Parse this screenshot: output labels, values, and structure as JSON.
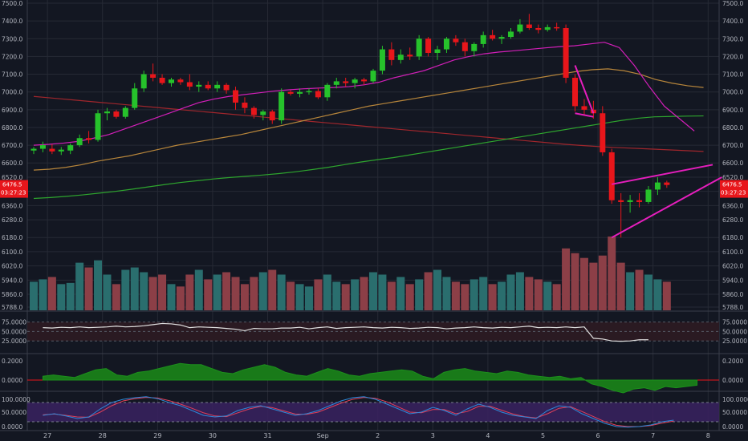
{
  "colors": {
    "background": "#131722",
    "grid": "#262a35",
    "axis_text": "#b2b5be",
    "up": "#26c22b",
    "down": "#e8161b",
    "vol_up": "#2a6e6e",
    "vol_down": "#8c3f47",
    "ma_fast": "#d21fb8",
    "ma_mid": "#b8863b",
    "ma_slow": "#2ea52e",
    "ma_long": "#a0262c",
    "triangle": "#e61ebd",
    "rsi_band": "#2a1a22",
    "rsi_line": "#e0e0e0",
    "macd_fill": "#197a19",
    "stoch_band": "#3a2260",
    "stoch_k": "#2d88d8",
    "stoch_d": "#e0405a",
    "price_label": "#e8161b"
  },
  "price_badge": {
    "price": "6476.5",
    "countdown": "03:27:23"
  },
  "chart_data": {
    "type": "candlestick",
    "x_labels": [
      {
        "label": "27",
        "i": 3
      },
      {
        "label": "28",
        "i": 15
      },
      {
        "label": "29",
        "i": 27
      },
      {
        "label": "30",
        "i": 39
      },
      {
        "label": "31",
        "i": 51
      },
      {
        "label": "Sep",
        "i": 63
      },
      {
        "label": "2",
        "i": 75
      },
      {
        "label": "3",
        "i": 87
      },
      {
        "label": "4",
        "i": 99
      },
      {
        "label": "5",
        "i": 111
      },
      {
        "label": "6",
        "i": 123
      },
      {
        "label": "7",
        "i": 135
      },
      {
        "label": "8",
        "i": 147
      }
    ],
    "price_ticks": [
      "7500.0",
      "7400.0",
      "7300.0",
      "7200.0",
      "7100.0",
      "7000.0",
      "6900.0",
      "6800.0",
      "6700.0",
      "6600.0",
      "6520.0",
      "6440.0",
      "6360.0",
      "6280.0",
      "6180.0",
      "6100.0",
      "6020.0",
      "5940.0",
      "5860.0",
      "5788.0"
    ],
    "candles": [
      [
        6670,
        6690,
        6650,
        6680,
        120
      ],
      [
        6680,
        6720,
        6660,
        6700,
        130
      ],
      [
        6680,
        6705,
        6650,
        6665,
        140
      ],
      [
        6665,
        6690,
        6645,
        6675,
        110
      ],
      [
        6670,
        6710,
        6650,
        6700,
        115
      ],
      [
        6700,
        6760,
        6690,
        6740,
        200
      ],
      [
        6740,
        6780,
        6710,
        6730,
        180
      ],
      [
        6730,
        6900,
        6720,
        6880,
        210
      ],
      [
        6880,
        6910,
        6840,
        6890,
        150
      ],
      [
        6890,
        6900,
        6850,
        6860,
        110
      ],
      [
        6860,
        6920,
        6850,
        6910,
        170
      ],
      [
        6910,
        7050,
        6900,
        7020,
        180
      ],
      [
        7020,
        7120,
        7000,
        7100,
        160
      ],
      [
        7100,
        7160,
        7060,
        7080,
        140
      ],
      [
        7080,
        7100,
        7040,
        7050,
        150
      ],
      [
        7050,
        7080,
        7030,
        7070,
        110
      ],
      [
        7070,
        7080,
        7040,
        7055,
        100
      ],
      [
        7055,
        7100,
        7010,
        7030,
        150
      ],
      [
        7030,
        7060,
        7000,
        7040,
        170
      ],
      [
        7040,
        7060,
        7010,
        7020,
        130
      ],
      [
        7020,
        7060,
        7000,
        7040,
        150
      ],
      [
        7040,
        7050,
        6990,
        7010,
        160
      ],
      [
        7010,
        7030,
        6900,
        6940,
        140
      ],
      [
        6940,
        6970,
        6880,
        6910,
        110
      ],
      [
        6910,
        6920,
        6850,
        6870,
        140
      ],
      [
        6870,
        6900,
        6840,
        6890,
        160
      ],
      [
        6890,
        6900,
        6820,
        6840,
        170
      ],
      [
        6840,
        7020,
        6820,
        7000,
        150
      ],
      [
        7000,
        7010,
        6980,
        6990,
        120
      ],
      [
        6990,
        7020,
        6970,
        7000,
        110
      ],
      [
        7000,
        7020,
        6985,
        7005,
        100
      ],
      [
        7005,
        7020,
        6960,
        6970,
        130
      ],
      [
        6970,
        7050,
        6950,
        7040,
        150
      ],
      [
        7040,
        7080,
        7020,
        7060,
        120
      ],
      [
        7060,
        7080,
        7030,
        7050,
        110
      ],
      [
        7050,
        7080,
        7020,
        7070,
        130
      ],
      [
        7070,
        7080,
        7040,
        7060,
        140
      ],
      [
        7060,
        7130,
        7050,
        7120,
        160
      ],
      [
        7120,
        7260,
        7100,
        7240,
        150
      ],
      [
        7240,
        7280,
        7150,
        7180,
        120
      ],
      [
        7180,
        7240,
        7160,
        7210,
        140
      ],
      [
        7210,
        7250,
        7180,
        7200,
        110
      ],
      [
        7200,
        7320,
        7180,
        7300,
        130
      ],
      [
        7300,
        7310,
        7200,
        7220,
        160
      ],
      [
        7220,
        7260,
        7180,
        7240,
        170
      ],
      [
        7240,
        7310,
        7220,
        7300,
        140
      ],
      [
        7300,
        7320,
        7260,
        7280,
        120
      ],
      [
        7280,
        7300,
        7200,
        7230,
        110
      ],
      [
        7230,
        7280,
        7200,
        7270,
        130
      ],
      [
        7270,
        7340,
        7250,
        7320,
        140
      ],
      [
        7320,
        7350,
        7290,
        7300,
        110
      ],
      [
        7300,
        7320,
        7270,
        7310,
        120
      ],
      [
        7310,
        7360,
        7300,
        7340,
        150
      ],
      [
        7340,
        7410,
        7330,
        7380,
        160
      ],
      [
        7380,
        7440,
        7350,
        7360,
        140
      ],
      [
        7360,
        7380,
        7330,
        7350,
        130
      ],
      [
        7350,
        7380,
        7340,
        7365,
        120
      ],
      [
        7365,
        7390,
        7345,
        7360,
        110
      ],
      [
        7360,
        7380,
        7050,
        7080,
        260
      ],
      [
        7080,
        7100,
        6890,
        6920,
        240
      ],
      [
        6920,
        6960,
        6870,
        6900,
        220
      ],
      [
        6900,
        6950,
        6850,
        6880,
        200
      ],
      [
        6880,
        6920,
        6640,
        6660,
        230
      ],
      [
        6660,
        6680,
        6370,
        6390,
        310
      ],
      [
        6390,
        6430,
        6180,
        6380,
        200
      ],
      [
        6380,
        6420,
        6320,
        6390,
        160
      ],
      [
        6390,
        6430,
        6350,
        6380,
        170
      ],
      [
        6380,
        6470,
        6370,
        6450,
        150
      ],
      [
        6450,
        6520,
        6420,
        6490,
        130
      ],
      [
        6490,
        6500,
        6460,
        6476,
        120
      ]
    ],
    "candle_start_index": 0,
    "candle_step": 2,
    "ma_fast": [
      6700,
      6705,
      6712,
      6722,
      6740,
      6760,
      6790,
      6820,
      6850,
      6880,
      6910,
      6940,
      6960,
      6975,
      6985,
      6995,
      7005,
      7012,
      7018,
      7022,
      7025,
      7030,
      7040,
      7055,
      7080,
      7100,
      7120,
      7150,
      7180,
      7200,
      7215,
      7225,
      7232,
      7240,
      7248,
      7255,
      7260,
      7270,
      7280,
      7250,
      7150,
      7030,
      6920,
      6850,
      6780
    ],
    "ma_mid": [
      6560,
      6565,
      6575,
      6590,
      6610,
      6625,
      6640,
      6660,
      6680,
      6700,
      6715,
      6730,
      6745,
      6760,
      6780,
      6800,
      6820,
      6840,
      6860,
      6880,
      6900,
      6920,
      6935,
      6950,
      6965,
      6980,
      6995,
      7010,
      7025,
      7040,
      7055,
      7070,
      7085,
      7100,
      7115,
      7125,
      7130,
      7120,
      7100,
      7070,
      7050,
      7035,
      7025
    ],
    "ma_slow": [
      6400,
      6405,
      6412,
      6420,
      6430,
      6440,
      6452,
      6465,
      6478,
      6490,
      6500,
      6510,
      6518,
      6525,
      6532,
      6540,
      6550,
      6562,
      6575,
      6590,
      6605,
      6618,
      6630,
      6645,
      6660,
      6675,
      6690,
      6705,
      6720,
      6735,
      6750,
      6765,
      6780,
      6795,
      6810,
      6825,
      6840,
      6852,
      6860,
      6862,
      6864,
      6865
    ],
    "ma_long": [
      6975,
      6965,
      6955,
      6945,
      6935,
      6925,
      6915,
      6905,
      6895,
      6885,
      6875,
      6865,
      6855,
      6845,
      6835,
      6825,
      6815,
      6805,
      6795,
      6785,
      6775,
      6765,
      6755,
      6745,
      6735,
      6725,
      6715,
      6705,
      6697,
      6690,
      6685,
      6680,
      6675,
      6670,
      6665
    ],
    "rsi_ticks": [
      "75.0000",
      "50.0000",
      "25.0000"
    ],
    "rsi": [
      60,
      59,
      61,
      60,
      62,
      60,
      61,
      62,
      64,
      62,
      63,
      65,
      68,
      71,
      70,
      67,
      60,
      62,
      61,
      60,
      58,
      56,
      52,
      58,
      57,
      57,
      59,
      59,
      61,
      57,
      60,
      62,
      58,
      60,
      61,
      62,
      60,
      59,
      61,
      60,
      58,
      59,
      61,
      60,
      57,
      59,
      60,
      62,
      60,
      59,
      61,
      60,
      62,
      64,
      60,
      61,
      60,
      62,
      60,
      62,
      32,
      30,
      25,
      24,
      25,
      28,
      28
    ],
    "macd_ticks": [
      "0.2000",
      "0.0000"
    ],
    "macd": [
      0.03,
      0.04,
      0.03,
      0.02,
      0.05,
      0.08,
      0.09,
      0.04,
      0.03,
      0.06,
      0.07,
      0.09,
      0.11,
      0.13,
      0.12,
      0.12,
      0.09,
      0.06,
      0.05,
      0.08,
      0.1,
      0.12,
      0.1,
      0.06,
      0.04,
      0.03,
      0.06,
      0.09,
      0.07,
      0.04,
      0.03,
      0.05,
      0.06,
      0.07,
      0.08,
      0.07,
      0.03,
      0.01,
      0.06,
      0.08,
      0.09,
      0.07,
      0.06,
      0.05,
      0.07,
      0.06,
      0.04,
      0.03,
      0.02,
      0.03,
      0.01,
      0.02,
      -0.03,
      -0.05,
      -0.08,
      -0.1,
      -0.07,
      -0.06,
      -0.08,
      -0.05,
      -0.06,
      -0.05,
      -0.04
    ],
    "stoch_ticks": [
      "100.0000",
      "50.0000",
      "0.0000"
    ],
    "stoch_k": [
      40,
      45,
      38,
      30,
      35,
      60,
      80,
      90,
      95,
      98,
      92,
      80,
      70,
      55,
      40,
      35,
      38,
      55,
      65,
      70,
      60,
      50,
      40,
      45,
      55,
      70,
      85,
      95,
      98,
      90,
      75,
      60,
      45,
      50,
      65,
      55,
      40,
      60,
      75,
      65,
      50,
      40,
      35,
      30,
      55,
      70,
      65,
      45,
      30,
      15,
      5,
      3,
      5,
      10,
      20,
      25
    ],
    "stoch_d": [
      42,
      44,
      40,
      35,
      34,
      50,
      70,
      85,
      92,
      96,
      94,
      86,
      75,
      62,
      48,
      38,
      36,
      48,
      60,
      68,
      64,
      54,
      44,
      43,
      50,
      64,
      78,
      90,
      96,
      93,
      82,
      66,
      50,
      48,
      58,
      58,
      45,
      52,
      68,
      68,
      56,
      44,
      36,
      32,
      45,
      62,
      67,
      52,
      36,
      20,
      9,
      5,
      5,
      8,
      16,
      22
    ]
  }
}
